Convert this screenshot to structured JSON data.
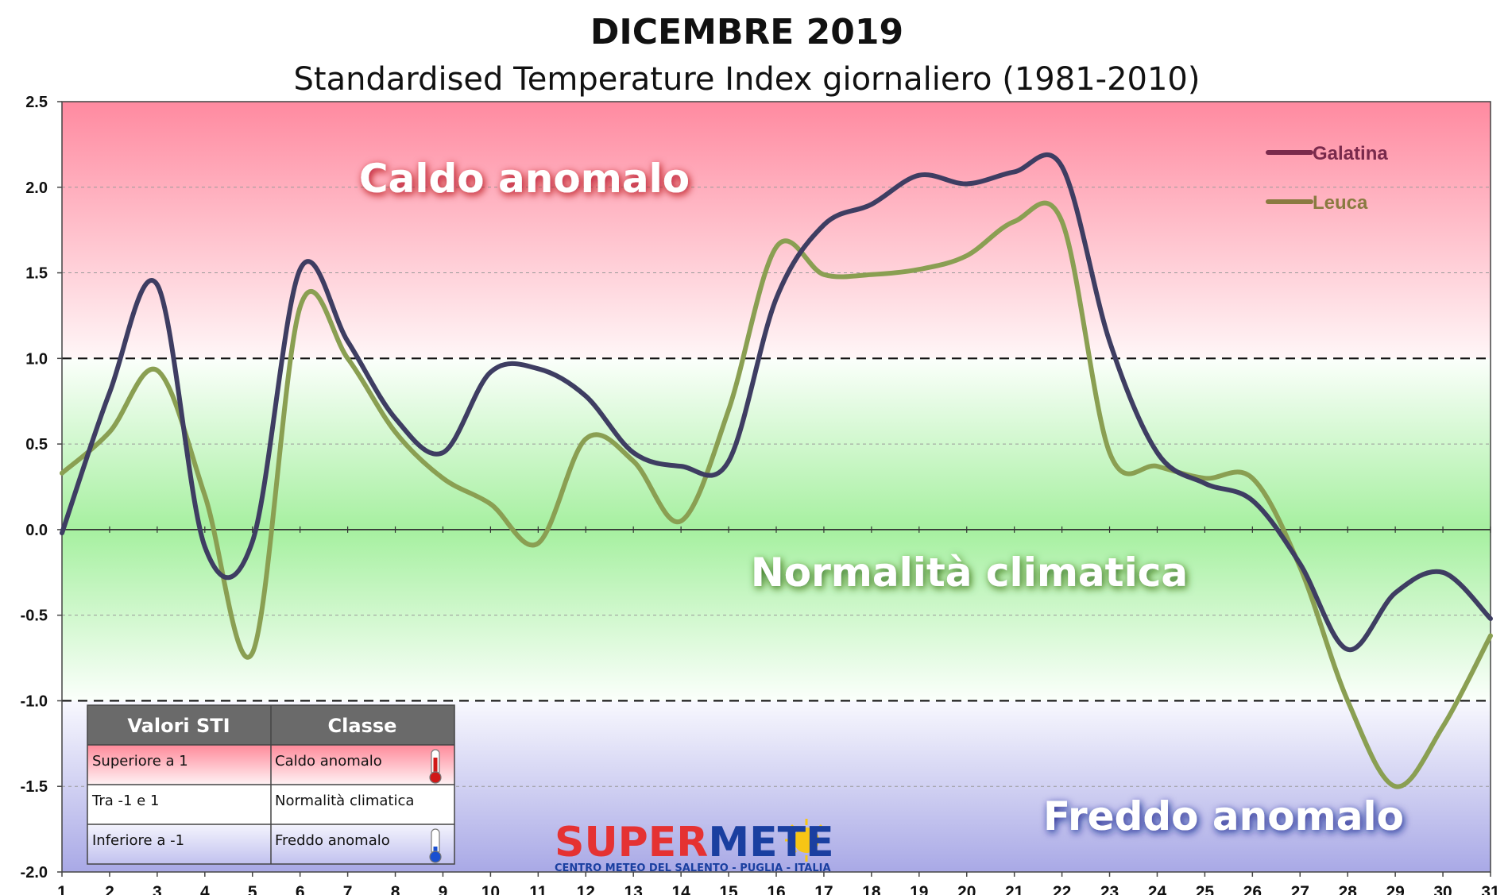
{
  "colors": {
    "galatina": "#3e3d62",
    "leuca": "#8a9f52",
    "legend_galatina": "#7a2a4c",
    "legend_leuca": "#8a7a40",
    "warm_zone": "#ff8aa0",
    "normal_zone": "#a6f0a0",
    "cold_zone": "#a9a9e6",
    "table_header": "#6a6a6a",
    "logo_red": "#e53232",
    "logo_blue": "#1a3fa0",
    "sun": "#f7c515"
  },
  "chart_data": {
    "type": "line",
    "title": "DICEMBRE 2019",
    "subtitle": "Standardised Temperature Index giornaliero (1981-2010)",
    "xlabel": "",
    "ylabel": "",
    "x": [
      1,
      2,
      3,
      4,
      5,
      6,
      7,
      8,
      9,
      10,
      11,
      12,
      13,
      14,
      15,
      16,
      17,
      18,
      19,
      20,
      21,
      22,
      23,
      24,
      25,
      26,
      27,
      28,
      29,
      30,
      31
    ],
    "xlim": [
      1,
      31
    ],
    "ylim": [
      -2.0,
      2.5
    ],
    "yticks": [
      2.5,
      2.0,
      1.5,
      1.0,
      0.5,
      0.0,
      -0.5,
      -1.0,
      -1.5,
      -2.0
    ],
    "ytick_labels": [
      "2.5",
      "2.0",
      "1.5",
      "1.0",
      "0.5",
      "0.0",
      "-0.5",
      "-1.0",
      "-1.5",
      "-2.0"
    ],
    "thresholds": [
      1.0,
      -1.0
    ],
    "grid": true,
    "legend_position": "top-right",
    "series": [
      {
        "name": "Galatina",
        "values": [
          -0.02,
          0.8,
          1.43,
          -0.1,
          -0.07,
          1.52,
          1.1,
          0.65,
          0.45,
          0.92,
          0.94,
          0.78,
          0.45,
          0.37,
          0.4,
          1.35,
          1.78,
          1.9,
          2.07,
          2.02,
          2.09,
          2.12,
          1.1,
          0.45,
          0.27,
          0.17,
          -0.2,
          -0.7,
          -0.37,
          -0.25,
          -0.52
        ]
      },
      {
        "name": "Leuca",
        "values": [
          0.33,
          0.57,
          0.93,
          0.2,
          -0.72,
          1.3,
          1.0,
          0.57,
          0.3,
          0.15,
          -0.08,
          0.53,
          0.4,
          0.05,
          0.7,
          1.65,
          1.49,
          1.49,
          1.52,
          1.6,
          1.8,
          1.8,
          0.45,
          0.37,
          0.3,
          0.3,
          -0.22,
          -1.0,
          -1.5,
          -1.15,
          -0.62
        ]
      }
    ],
    "annotations": {
      "warm": "Caldo anomalo",
      "normal": "Normalità climatica",
      "cold": "Freddo anomalo"
    },
    "legend_table": {
      "headers": [
        "Valori STI",
        "Classe"
      ],
      "rows": [
        {
          "range": "Superiore a 1",
          "classe": "Caldo anomalo",
          "icon": "thermometer-hot-icon"
        },
        {
          "range": "Tra -1 e 1",
          "classe": "Normalità climatica",
          "icon": ""
        },
        {
          "range": "Inferiore a -1",
          "classe": "Freddo anomalo",
          "icon": "thermometer-cold-icon"
        }
      ]
    }
  },
  "logo": {
    "part1": "SUPER",
    "part2": "METE",
    "tagline": "CENTRO METEO DEL SALENTO - PUGLIA - ITALIA"
  }
}
